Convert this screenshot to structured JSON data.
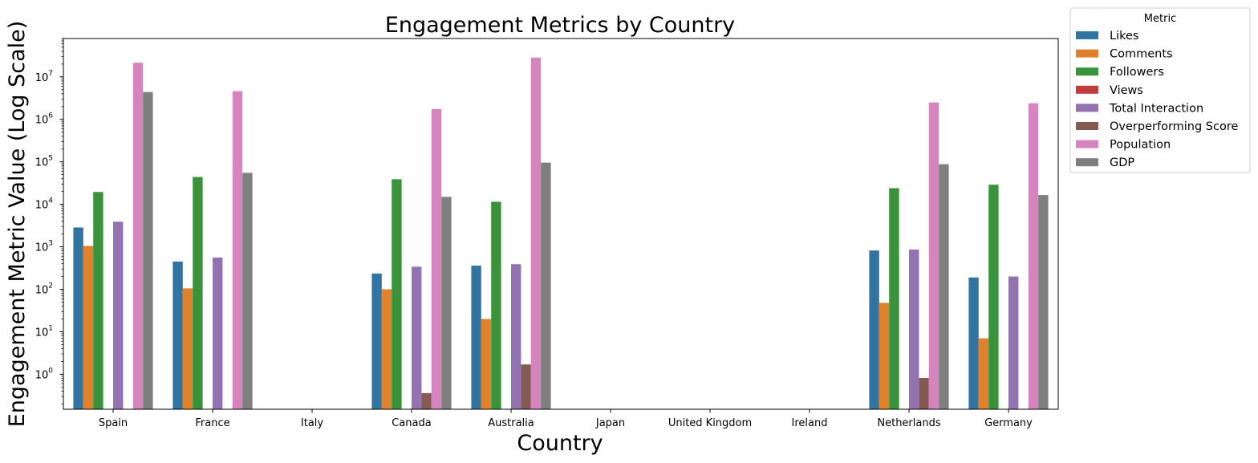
{
  "chart_data": {
    "type": "bar",
    "title": "Engagement Metrics by Country",
    "xlabel": "Country",
    "ylabel": "Engagement Metric Value (Log Scale)",
    "yscale": "log",
    "ylim": [
      0.15,
      80000000
    ],
    "y_ticks": [
      {
        "value": 1,
        "base": "10",
        "exp": "0"
      },
      {
        "value": 10,
        "base": "10",
        "exp": "1"
      },
      {
        "value": 100,
        "base": "10",
        "exp": "2"
      },
      {
        "value": 1000,
        "base": "10",
        "exp": "3"
      },
      {
        "value": 10000,
        "base": "10",
        "exp": "4"
      },
      {
        "value": 100000,
        "base": "10",
        "exp": "5"
      },
      {
        "value": 1000000,
        "base": "10",
        "exp": "6"
      },
      {
        "value": 10000000,
        "base": "10",
        "exp": "7"
      }
    ],
    "categories": [
      "Spain",
      "France",
      "Italy",
      "Canada",
      "Australia",
      "Japan",
      "United Kingdom",
      "Ireland",
      "Netherlands",
      "Germany"
    ],
    "legend_title": "Metric",
    "legend_position": "outside-upper-right",
    "grid": false,
    "series": [
      {
        "name": "Likes",
        "color": "#3274a1",
        "values": [
          2850,
          450,
          null,
          235,
          360,
          null,
          null,
          null,
          820,
          190
        ]
      },
      {
        "name": "Comments",
        "color": "#e1812c",
        "values": [
          1050,
          105,
          null,
          100,
          20,
          null,
          null,
          null,
          48,
          7
        ]
      },
      {
        "name": "Followers",
        "color": "#3a923a",
        "values": [
          19500,
          44000,
          null,
          39000,
          11500,
          null,
          null,
          null,
          24000,
          29000
        ]
      },
      {
        "name": "Views",
        "color": "#c03d3e",
        "values": [
          null,
          null,
          null,
          null,
          null,
          null,
          null,
          null,
          null,
          null
        ]
      },
      {
        "name": "Total Interaction",
        "color": "#9372b2",
        "values": [
          3900,
          560,
          null,
          340,
          390,
          null,
          null,
          null,
          860,
          200
        ]
      },
      {
        "name": "Overperforming Score",
        "color": "#845b53",
        "values": [
          null,
          null,
          null,
          0.36,
          1.7,
          null,
          null,
          null,
          0.82,
          null
        ]
      },
      {
        "name": "Population",
        "color": "#d684bd",
        "values": [
          21500000,
          4600000,
          null,
          1750000,
          28500000,
          null,
          null,
          null,
          2500000,
          2400000
        ]
      },
      {
        "name": "GDP",
        "color": "#7f7f7f",
        "values": [
          4400000,
          55000,
          null,
          15000,
          96000,
          null,
          null,
          null,
          88000,
          16500
        ]
      }
    ]
  }
}
